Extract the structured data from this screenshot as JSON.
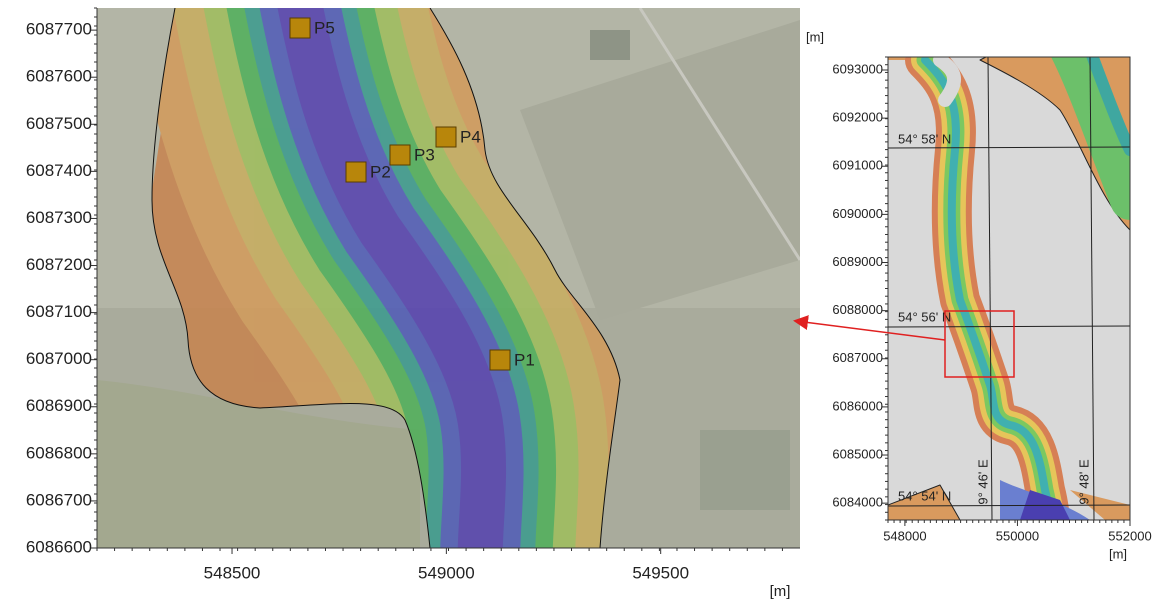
{
  "main_map": {
    "xlim": [
      548185,
      549825
    ],
    "ylim": [
      6086600,
      6087747
    ],
    "y_axis_ticks": [
      6087700,
      6087600,
      6087500,
      6087400,
      6087300,
      6087200,
      6087100,
      6087000,
      6086900,
      6086800,
      6086700,
      6086600
    ],
    "x_axis_ticks": [
      548500,
      549000,
      549500
    ],
    "x_unit": "[m]",
    "points": [
      "P1",
      "P2",
      "P3",
      "P4",
      "P5"
    ]
  },
  "inset_map": {
    "xlim": [
      547700,
      552000
    ],
    "ylim": [
      6083650,
      6093270
    ],
    "y_unit": "[m]",
    "y_axis_ticks": [
      6093000,
      6092000,
      6091000,
      6090000,
      6089000,
      6088000,
      6087000,
      6086000,
      6085000,
      6084000
    ],
    "x_axis_ticks": [
      548000,
      550000,
      552000
    ],
    "x_unit": "[m]",
    "latitude_labels": [
      "54° 58' N",
      "54° 56' N",
      "54° 54' N"
    ],
    "longitude_labels": [
      "9° 46' E",
      "9° 48' E"
    ]
  }
}
